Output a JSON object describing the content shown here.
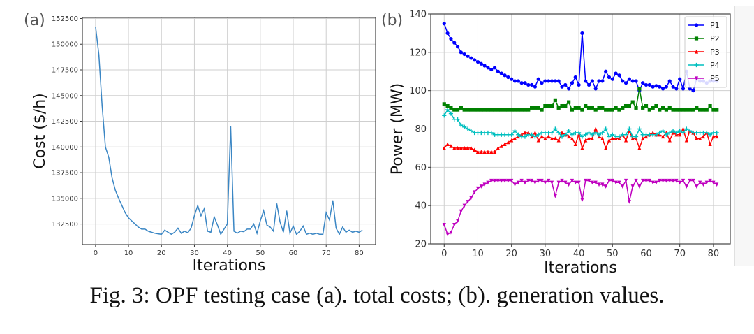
{
  "caption": "Fig. 3: OPF testing case (a). total costs; (b). generation values.",
  "chart_data": [
    {
      "type": "line",
      "panel_label": "(a)",
      "xlabel": "Iterations",
      "ylabel": "Cost ($/h)",
      "xlim": [
        -4,
        85
      ],
      "ylim": [
        130500,
        152600
      ],
      "xticks": [
        0,
        10,
        20,
        30,
        40,
        50,
        60,
        70,
        80
      ],
      "yticks": [
        132500,
        135000,
        137500,
        140000,
        142500,
        145000,
        147500,
        150000,
        152500
      ],
      "grid": true,
      "series": [
        {
          "color": "#3a86c4",
          "marker": "none",
          "values": [
            151700,
            149000,
            144000,
            140000,
            139000,
            137000,
            135800,
            135000,
            134300,
            133600,
            133100,
            132800,
            132500,
            132200,
            132000,
            132000,
            131800,
            131700,
            131600,
            131550,
            131500,
            131900,
            131700,
            131500,
            131700,
            132100,
            131600,
            131800,
            131650,
            132100,
            133300,
            134300,
            133300,
            134000,
            131800,
            131700,
            133200,
            132400,
            131500,
            132000,
            132500,
            142000,
            131800,
            131600,
            131800,
            131750,
            132000,
            132000,
            132500,
            131600,
            132800,
            133800,
            132400,
            132200,
            131800,
            134500,
            132700,
            131700,
            133800,
            131600,
            132300,
            131500,
            131800,
            132300,
            131500,
            131600,
            131500,
            131600,
            131500,
            131500,
            133600,
            132900,
            134800,
            132100,
            131500,
            132200,
            131700,
            131900,
            131700,
            131800,
            131700,
            131900
          ]
        }
      ]
    },
    {
      "type": "line",
      "panel_label": "(b)",
      "xlabel": "Iterations",
      "ylabel": "Power (MW)",
      "xlim": [
        -4,
        85
      ],
      "ylim": [
        20,
        140
      ],
      "xticks": [
        0,
        10,
        20,
        30,
        40,
        50,
        60,
        70,
        80
      ],
      "yticks": [
        20,
        40,
        60,
        80,
        100,
        120,
        140
      ],
      "grid": true,
      "legend": "top-right",
      "series": [
        {
          "name": "P1",
          "color": "#0000ff",
          "marker": "circle",
          "values": [
            135,
            130,
            127,
            125,
            123,
            120,
            119,
            118,
            117,
            116,
            115,
            114,
            113,
            112,
            111,
            112,
            110,
            109,
            108,
            107,
            106,
            105,
            105,
            104,
            104,
            103,
            103,
            102,
            106,
            104,
            105,
            105,
            105,
            105,
            105,
            102,
            103,
            101,
            104,
            107,
            103,
            130,
            105,
            103,
            105,
            101,
            105,
            105,
            110,
            107,
            106,
            109,
            108,
            105,
            104,
            106,
            105,
            105,
            100,
            104,
            103,
            103,
            102,
            102.5,
            102,
            101,
            102,
            105,
            102,
            101,
            106,
            101,
            110,
            101,
            100,
            106,
            105,
            105,
            104,
            105,
            105,
            105
          ]
        },
        {
          "name": "P2",
          "color": "#008000",
          "marker": "square",
          "values": [
            93,
            92,
            91,
            90,
            90,
            91,
            90,
            90,
            90,
            90,
            90,
            90,
            90,
            90,
            90,
            90,
            90,
            90,
            90,
            90,
            90,
            90,
            90,
            90,
            90,
            90,
            91,
            91,
            91,
            90,
            92,
            92,
            92,
            95,
            91,
            92,
            92,
            94,
            90,
            91,
            91,
            90,
            92,
            91,
            91,
            90,
            91,
            91,
            90,
            90,
            90,
            91,
            90,
            91,
            92,
            92,
            94,
            91,
            101,
            91,
            92,
            90,
            91,
            92,
            90,
            91,
            90,
            91,
            90,
            90,
            90,
            90,
            90,
            90,
            90,
            91,
            90,
            90,
            90,
            92,
            90,
            90
          ]
        },
        {
          "name": "P3",
          "color": "#ff0000",
          "marker": "triangle-up",
          "values": [
            70,
            72,
            71,
            70,
            70,
            70,
            70,
            70,
            70,
            69,
            68,
            68,
            68,
            68,
            68,
            68,
            70,
            71,
            72,
            73,
            74,
            75,
            76,
            77,
            78,
            78,
            76,
            78,
            74,
            76,
            75,
            76,
            75,
            75,
            74,
            78,
            77,
            76,
            75,
            72,
            77,
            70,
            74,
            75,
            75,
            80,
            76,
            75,
            70,
            74,
            75,
            75,
            75,
            77,
            74,
            79,
            75,
            75,
            70,
            75,
            76,
            77,
            78,
            77,
            77,
            76,
            78,
            74,
            78,
            77,
            77,
            80,
            74,
            79,
            78,
            75,
            75,
            76,
            78,
            72,
            76,
            76
          ]
        },
        {
          "name": "P4",
          "color": "#00bfbf",
          "marker": "plus",
          "values": [
            87,
            90,
            88,
            85,
            85,
            82,
            81,
            80,
            79,
            78,
            78,
            78,
            78,
            78,
            78,
            77,
            77,
            77,
            77,
            77,
            77,
            79,
            77,
            76,
            76,
            77,
            77,
            76,
            77,
            78,
            78,
            78,
            78,
            80,
            78,
            76,
            77,
            79,
            77,
            78,
            78,
            76,
            77,
            78,
            77,
            78,
            77,
            78,
            80,
            76,
            77,
            76,
            76,
            77,
            77,
            80,
            76,
            76,
            80,
            77,
            77,
            77,
            77,
            77,
            78,
            79,
            77,
            78,
            79,
            78,
            79,
            78,
            80,
            79,
            78,
            78,
            78,
            78,
            78,
            77,
            78,
            78
          ]
        },
        {
          "name": "P5",
          "color": "#bf00bf",
          "marker": "triangle-down",
          "values": [
            30,
            25,
            26,
            30,
            32,
            37,
            40,
            42,
            44,
            47,
            49,
            50,
            51,
            52,
            53,
            53,
            53,
            53,
            53,
            53,
            53,
            51,
            52,
            53,
            52,
            53,
            53,
            52,
            53,
            53,
            52,
            53,
            52,
            45,
            52,
            53,
            52,
            51,
            53,
            52,
            52,
            43,
            53,
            53,
            52,
            52,
            51,
            51,
            50,
            53,
            53,
            52,
            52,
            50,
            53,
            42,
            50,
            53,
            50,
            53,
            53,
            53,
            52,
            52,
            53,
            53,
            53,
            53,
            53,
            53,
            52,
            53,
            50,
            53,
            53,
            50,
            52,
            51,
            52,
            53,
            52,
            51
          ]
        }
      ]
    }
  ]
}
